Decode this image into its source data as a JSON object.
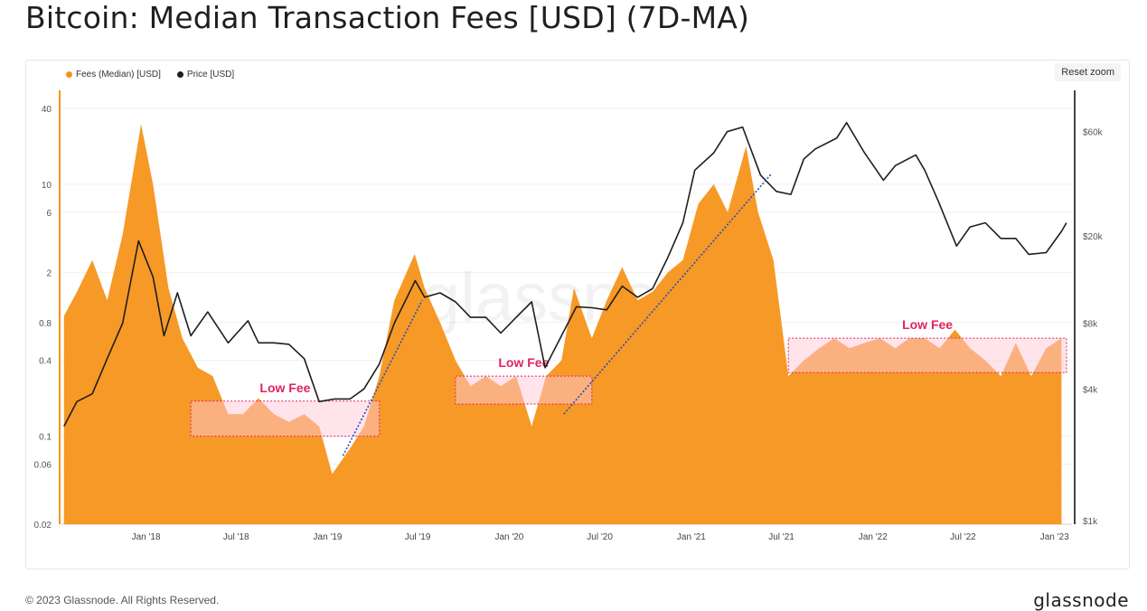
{
  "title": "Bitcoin: Median Transaction Fees [USD] (7D-MA)",
  "reset_zoom": "Reset zoom",
  "footer": "© 2023 Glassnode. All Rights Reserved.",
  "brand": "glassnode",
  "watermark": "glassnode",
  "colors": {
    "fees": "#f7931a",
    "price": "#1e1e1e",
    "band_fill": "#ffc9d8",
    "band_stroke": "#e0245e",
    "label": "#e0245e",
    "trend": "#1f4fbf"
  },
  "chart_data": {
    "type": "area",
    "legend": [
      "Fees (Median) [USD]",
      "Price [USD]"
    ],
    "legend_position": "top-left",
    "x_ticks": [
      "Jan '18",
      "Jul '18",
      "Jan '19",
      "Jul '19",
      "Jan '20",
      "Jul '20",
      "Jan '21",
      "Jul '21",
      "Jan '22",
      "Jul '22",
      "Jan '23"
    ],
    "y_left": {
      "scale": "log",
      "ticks": [
        "40",
        "10",
        "6",
        "2",
        "0.8",
        "0.4",
        "0.1",
        "0.06",
        "0.02"
      ],
      "range": [
        0.02,
        40
      ]
    },
    "y_right": {
      "scale": "log",
      "ticks": [
        "$60k",
        "$20k",
        "$8k",
        "$4k",
        "$1k"
      ],
      "range": [
        1000,
        100000
      ]
    },
    "grid": true,
    "series": [
      {
        "name": "Fees (Median) [USD]",
        "x": [
          "2017-07-20",
          "2017-08-15",
          "2017-09-15",
          "2017-10-15",
          "2017-11-15",
          "2017-12-22",
          "2018-01-15",
          "2018-02-15",
          "2018-03-15",
          "2018-04-15",
          "2018-05-15",
          "2018-06-15",
          "2018-07-15",
          "2018-08-15",
          "2018-09-15",
          "2018-10-15",
          "2018-11-15",
          "2018-12-15",
          "2019-01-10",
          "2019-02-15",
          "2019-03-15",
          "2019-04-15",
          "2019-05-15",
          "2019-06-25",
          "2019-07-15",
          "2019-08-15",
          "2019-09-15",
          "2019-10-15",
          "2019-11-15",
          "2019-12-15",
          "2020-01-15",
          "2020-02-15",
          "2020-03-15",
          "2020-04-15",
          "2020-05-10",
          "2020-06-15",
          "2020-07-15",
          "2020-08-15",
          "2020-09-15",
          "2020-10-15",
          "2020-11-15",
          "2020-12-15",
          "2021-01-15",
          "2021-02-15",
          "2021-03-15",
          "2021-04-21",
          "2021-05-15",
          "2021-06-15",
          "2021-07-15",
          "2021-08-15",
          "2021-09-15",
          "2021-10-15",
          "2021-11-15",
          "2021-12-15",
          "2022-01-15",
          "2022-02-15",
          "2022-03-15",
          "2022-04-15",
          "2022-05-15",
          "2022-06-15",
          "2022-07-15",
          "2022-08-15",
          "2022-09-15",
          "2022-10-15",
          "2022-11-15",
          "2022-12-15",
          "2023-01-15"
        ],
        "y": [
          0.9,
          1.4,
          2.5,
          1.2,
          4.0,
          30,
          10,
          1.5,
          0.6,
          0.35,
          0.3,
          0.15,
          0.15,
          0.2,
          0.15,
          0.13,
          0.15,
          0.12,
          0.05,
          0.08,
          0.12,
          0.3,
          1.2,
          2.8,
          1.5,
          0.8,
          0.4,
          0.25,
          0.3,
          0.25,
          0.3,
          0.12,
          0.3,
          0.4,
          1.5,
          0.6,
          1.2,
          2.2,
          1.2,
          1.4,
          2.0,
          2.5,
          7,
          10,
          6,
          20,
          6,
          2.5,
          0.3,
          0.4,
          0.5,
          0.6,
          0.5,
          0.55,
          0.6,
          0.5,
          0.6,
          0.6,
          0.5,
          0.7,
          0.5,
          0.4,
          0.3,
          0.55,
          0.3,
          0.5,
          0.6
        ]
      },
      {
        "name": "Price [USD]",
        "x": [
          "2017-07-20",
          "2017-08-15",
          "2017-09-15",
          "2017-10-15",
          "2017-11-15",
          "2017-12-17",
          "2018-01-15",
          "2018-02-06",
          "2018-03-05",
          "2018-04-01",
          "2018-05-05",
          "2018-06-15",
          "2018-07-25",
          "2018-08-15",
          "2018-09-15",
          "2018-10-15",
          "2018-11-15",
          "2018-12-15",
          "2019-01-15",
          "2019-02-15",
          "2019-03-15",
          "2019-04-15",
          "2019-05-15",
          "2019-06-26",
          "2019-07-15",
          "2019-08-15",
          "2019-09-15",
          "2019-10-15",
          "2019-11-15",
          "2019-12-15",
          "2020-01-15",
          "2020-02-15",
          "2020-03-13",
          "2020-04-15",
          "2020-05-15",
          "2020-06-15",
          "2020-07-15",
          "2020-08-15",
          "2020-09-15",
          "2020-10-15",
          "2020-11-15",
          "2020-12-15",
          "2021-01-08",
          "2021-02-15",
          "2021-03-14",
          "2021-04-14",
          "2021-05-20",
          "2021-06-21",
          "2021-07-20",
          "2021-08-15",
          "2021-09-07",
          "2021-10-20",
          "2021-11-09",
          "2021-12-15",
          "2022-01-22",
          "2022-02-15",
          "2022-03-28",
          "2022-04-15",
          "2022-05-12",
          "2022-06-18",
          "2022-07-15",
          "2022-08-15",
          "2022-09-15",
          "2022-10-15",
          "2022-11-10",
          "2022-12-15",
          "2023-01-15",
          "2023-01-25"
        ],
        "y": [
          2700,
          3500,
          3800,
          5500,
          8000,
          19000,
          13000,
          7000,
          11000,
          7000,
          9000,
          6500,
          8200,
          6500,
          6500,
          6400,
          5500,
          3500,
          3600,
          3600,
          4000,
          5200,
          8000,
          12500,
          10500,
          11000,
          10000,
          8500,
          8500,
          7200,
          8500,
          10000,
          5000,
          7000,
          9500,
          9400,
          9200,
          11800,
          10500,
          11500,
          16000,
          23000,
          40000,
          48000,
          60000,
          63000,
          38000,
          32000,
          31000,
          45000,
          50000,
          56000,
          66000,
          48000,
          36000,
          42000,
          47000,
          40000,
          29000,
          18000,
          22000,
          23000,
          19500,
          19500,
          16500,
          16800,
          21000,
          23000
        ]
      }
    ],
    "annotations": [
      {
        "text": "Low Fee",
        "x_start": "2018-04-01",
        "x_end": "2019-04-15",
        "y_low": 0.1,
        "y_high": 0.19
      },
      {
        "text": "Low Fee",
        "x_start": "2019-09-15",
        "x_end": "2020-06-15",
        "y_low": 0.18,
        "y_high": 0.3
      },
      {
        "text": "Low Fee",
        "x_start": "2021-07-15",
        "x_end": "2023-01-25",
        "y_low": 0.32,
        "y_high": 0.6
      }
    ],
    "trendlines": [
      {
        "x_start": "2019-02-01",
        "x_end": "2019-07-10",
        "y_start": 0.07,
        "y_end": 1.2
      },
      {
        "x_start": "2020-04-20",
        "x_end": "2021-06-10",
        "y_start": 0.15,
        "y_end": 12
      }
    ]
  }
}
